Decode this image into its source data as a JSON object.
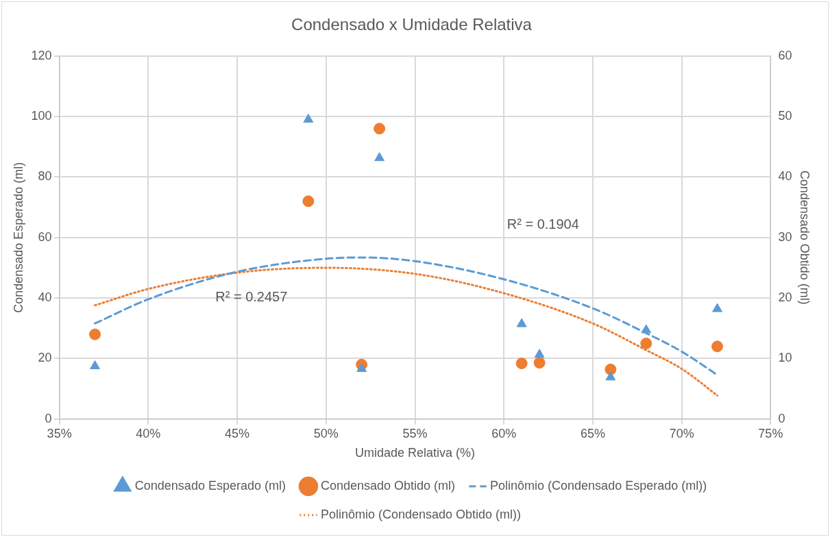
{
  "chart_data": {
    "type": "scatter",
    "title": "Condensado x Umidade Relativa",
    "xlabel": "Umidade Relativa (%)",
    "ylabel": "Condensado Esperado (ml)",
    "y2label": "Condensado Obtido (ml)",
    "x": [
      37,
      49,
      52,
      53,
      61,
      62,
      66,
      68,
      72
    ],
    "series": [
      {
        "name": "Condensado Esperado (ml)",
        "marker": "triangle",
        "color": "#5b9bd5",
        "values": [
          17.5,
          99,
          16.6,
          86.3,
          31.4,
          21.3,
          13.8,
          29.4,
          36.4
        ]
      },
      {
        "name": "Condensado Obtido (ml)",
        "marker": "circle",
        "axis": "y2",
        "color": "#ed7d31",
        "values": [
          14,
          36,
          9,
          48,
          9.2,
          9.3,
          8.2,
          12.5,
          12
        ]
      },
      {
        "name": "Polinômio (Condensado Esperado (ml))",
        "type": "line",
        "marker": "none",
        "line_style": "dashed",
        "color": "#5b9bd5",
        "x": [
          37,
          40,
          45,
          50,
          52,
          55,
          60,
          65,
          68,
          70,
          72
        ],
        "values": [
          31.6,
          39.6,
          48.7,
          53,
          53.4,
          52.2,
          46.2,
          36.6,
          28.4,
          22.3,
          14.6
        ]
      },
      {
        "name": "Polinômio (Condensado Obtido (ml))",
        "type": "line",
        "marker": "none",
        "line_style": "dotted",
        "axis": "y2",
        "color": "#ed7d31",
        "x": [
          37,
          40,
          45,
          50,
          55,
          60,
          65,
          68,
          70,
          72
        ],
        "values": [
          18.8,
          21.5,
          24.2,
          25,
          24,
          20.8,
          15.8,
          11.4,
          8.3,
          3.9
        ]
      }
    ],
    "xlim": [
      35,
      75
    ],
    "xticks": [
      {
        "value": 35,
        "label": "35%"
      },
      {
        "value": 40,
        "label": "40%"
      },
      {
        "value": 45,
        "label": "45%"
      },
      {
        "value": 50,
        "label": "50%"
      },
      {
        "value": 55,
        "label": "55%"
      },
      {
        "value": 60,
        "label": "60%"
      },
      {
        "value": 65,
        "label": "65%"
      },
      {
        "value": 70,
        "label": "70%"
      },
      {
        "value": 75,
        "label": "75%"
      }
    ],
    "ylim": [
      0,
      120
    ],
    "yticks": [
      0,
      20,
      40,
      60,
      80,
      100,
      120
    ],
    "y2lim": [
      0,
      60
    ],
    "y2ticks": [
      0,
      10,
      20,
      30,
      40,
      50,
      60
    ],
    "grid": true,
    "legend": "bottom",
    "annotations": [
      "R² = 0.2457",
      "R² = 0.1904"
    ]
  }
}
